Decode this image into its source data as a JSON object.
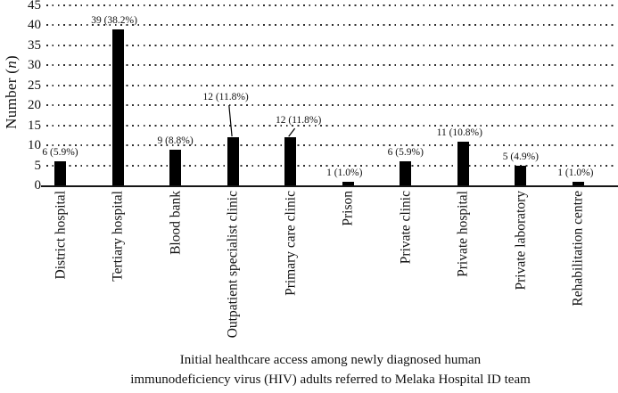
{
  "figure": {
    "y_axis_title": {
      "prefix": "Number (",
      "italic": "n",
      "suffix": ")"
    },
    "caption_line1": "Initial healthcare access among newly diagnosed human",
    "caption_line2": "immunodeficiency virus (HIV) adults referred to Melaka Hospital ID team"
  },
  "chart_data": {
    "type": "bar",
    "title": "",
    "xlabel": "",
    "ylabel": "Number (n)",
    "ylim": [
      0,
      45
    ],
    "ytick_step": 5,
    "grid": "horizontal-dotted",
    "legend": "none",
    "bar_color": "#000000",
    "categories": [
      "District hospital",
      "Tertiary hospital",
      "Blood bank",
      "Outpatient specialist clinic",
      "Primary care clinic",
      "Prison",
      "Private clinic",
      "Private hospital",
      "Private laboratory",
      "Rehabilitation centre"
    ],
    "values": [
      6,
      39,
      9,
      12,
      12,
      1,
      6,
      11,
      5,
      1
    ],
    "value_labels": [
      "6 (5.9%)",
      "39 (38.2%)",
      "9 (8.8%)",
      "12 (11.8%)",
      "12 (11.8%)",
      "1 (1.0%)",
      "6 (5.9%)",
      "11 (10.8%)",
      "5 (4.9%)",
      "1 (1.0%)"
    ],
    "label_dx": [
      0,
      -4,
      0,
      -8,
      9,
      -4,
      0,
      -4,
      0,
      -3
    ],
    "callout_gap": [
      0,
      0,
      0,
      35,
      9,
      0,
      0,
      0,
      0,
      0
    ]
  }
}
